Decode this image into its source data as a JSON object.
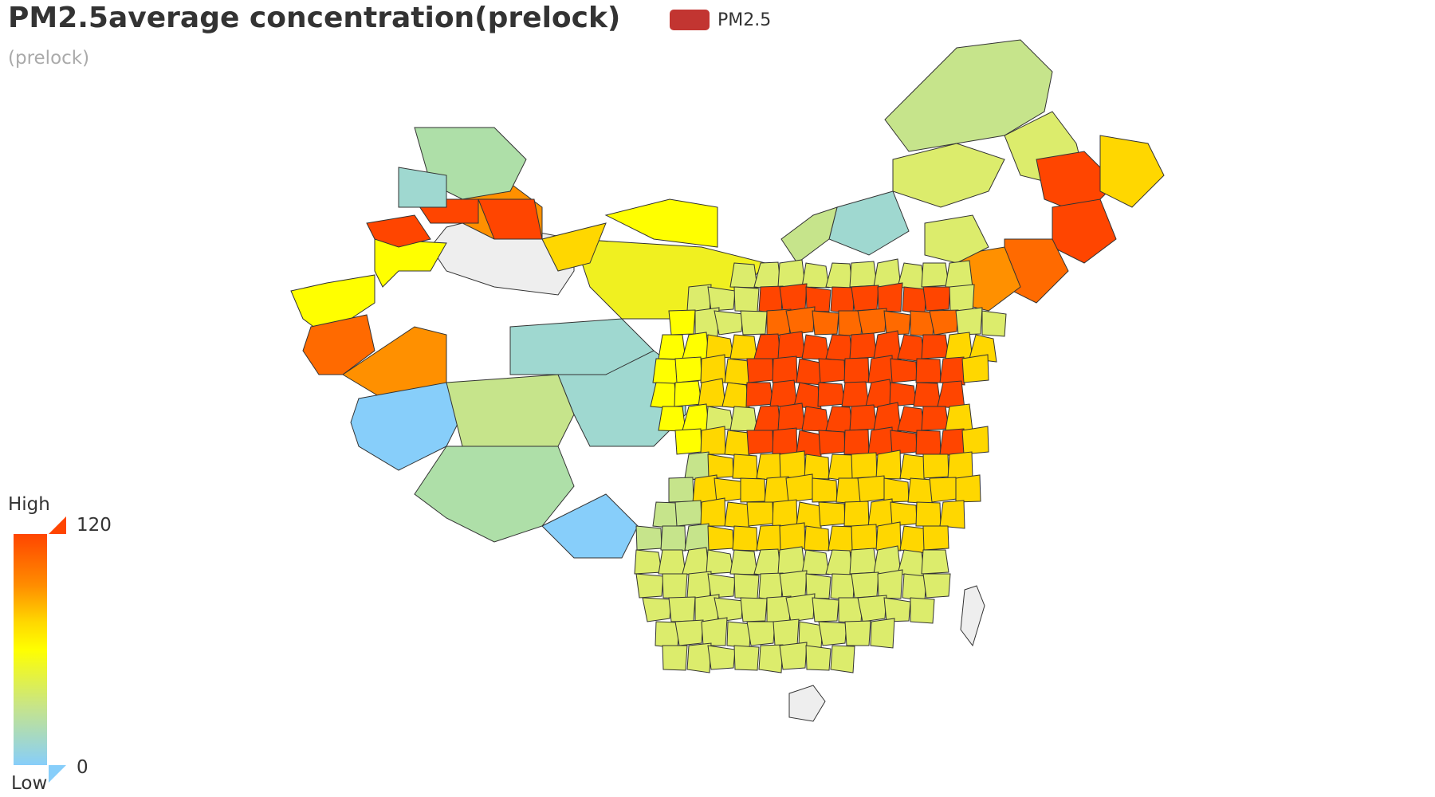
{
  "title": "PM2.5average concentration(prelock)",
  "subtitle": "(prelock)",
  "legend": {
    "label": "PM2.5",
    "color": "#c23531"
  },
  "visual_map": {
    "max_label": "120",
    "min_label": "0",
    "high_text": "High",
    "low_text": "Low",
    "max": 120,
    "min": 0,
    "colors": [
      "#87cefa",
      "#c6e48b",
      "#ffff00",
      "#ffd700",
      "#ff8c00",
      "#ff4500"
    ]
  },
  "map": {
    "no_data_color": "#eeeeee",
    "border_color": "#333333"
  }
}
